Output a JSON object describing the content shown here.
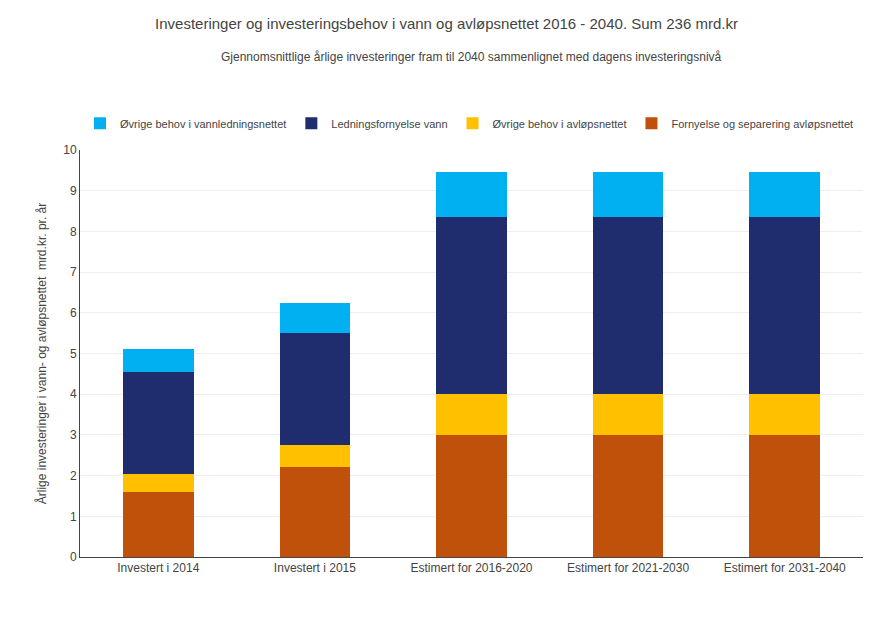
{
  "chart_data": {
    "type": "bar",
    "stacked": true,
    "title": "Investeringer og investeringsbehov i vann og avløpsnettet 2016 - 2040. Sum 236 mrd.kr",
    "subtitle": "Gjennomsnittlige årlige investeringer fram til 2040 sammenlignet med dagens investeringsnivå",
    "y_label": "Årlige investeringer i vann- og avløpsnettet  mrd.kr. pr. år",
    "categories": [
      "Investert i 2014",
      "Investert i 2015",
      "Estimert for 2016-2020",
      "Estimert for 2021-2030",
      "Estimert for 2031-2040"
    ],
    "series": [
      {
        "name": "Fornyelse og separering avløpsnettet",
        "color": "#C0510A",
        "values": [
          1.6,
          2.2,
          3.0,
          3.0,
          3.0
        ]
      },
      {
        "name": "Øvrige behov i avløpsnettet",
        "color": "#FFC000",
        "values": [
          0.45,
          0.55,
          1.0,
          1.0,
          1.0
        ]
      },
      {
        "name": "Ledningsfornyelse vann",
        "color": "#1F2D6E",
        "values": [
          2.5,
          2.75,
          4.35,
          4.35,
          4.35
        ]
      },
      {
        "name": "Øvrige behov i vannledningsnettet",
        "color": "#00B0F0",
        "values": [
          0.55,
          0.75,
          1.1,
          1.1,
          1.1
        ]
      }
    ],
    "ylim": [
      0,
      10
    ],
    "yticks": [
      0,
      1,
      2,
      3,
      4,
      5,
      6,
      7,
      8,
      9,
      10
    ],
    "grid": true,
    "legend": "upper left"
  }
}
